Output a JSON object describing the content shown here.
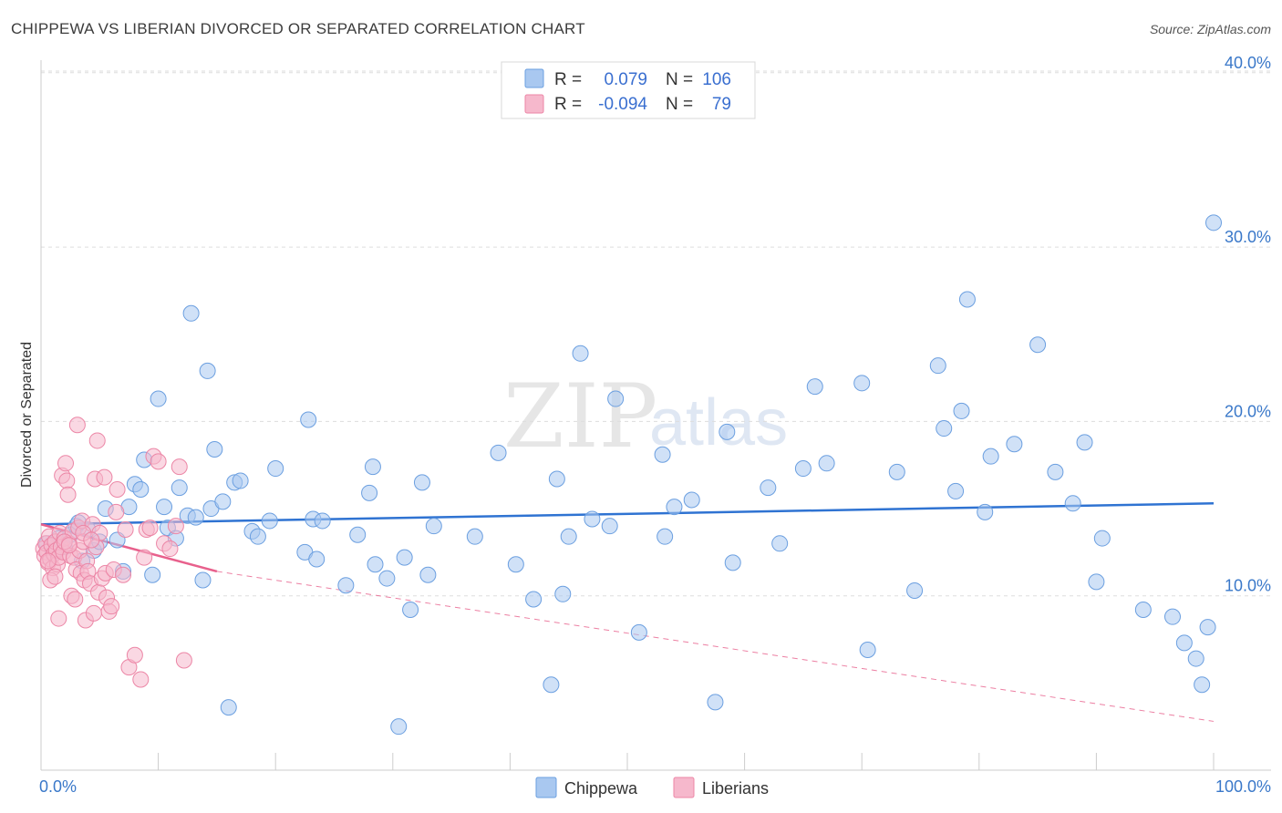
{
  "title": "CHIPPEWA VS LIBERIAN DIVORCED OR SEPARATED CORRELATION CHART",
  "source": "Source: ZipAtlas.com",
  "watermark": {
    "zip": "ZIP",
    "atlas": "atlas"
  },
  "colors": {
    "chippewa_fill": "#a9c8f0",
    "chippewa_stroke": "#6b9fe0",
    "chippewa_line": "#2f73d2",
    "liberian_fill": "#f6b8cc",
    "liberian_stroke": "#ec86a6",
    "liberian_line": "#e8608c",
    "grid": "#dddddd",
    "tick_text": "#3a78c9"
  },
  "legend": {
    "rows": [
      {
        "r_label": "R =",
        "r_value": "0.079",
        "n_label": "N =",
        "n_value": "106"
      },
      {
        "r_label": "R =",
        "r_value": "-0.094",
        "n_label": "N =",
        "n_value": "79"
      }
    ]
  },
  "chart_data": {
    "type": "scatter",
    "title": "CHIPPEWA VS LIBERIAN DIVORCED OR SEPARATED CORRELATION CHART",
    "xlabel": "",
    "ylabel": "Divorced or Separated",
    "xlim": [
      0,
      100
    ],
    "ylim": [
      0,
      42
    ],
    "x_tick_labels": [
      "0.0%",
      "100.0%"
    ],
    "y_ticks": [
      10,
      20,
      30,
      40
    ],
    "y_tick_labels": [
      "10.0%",
      "20.0%",
      "30.0%",
      "40.0%"
    ],
    "legend_position": "top-center",
    "series": [
      {
        "name": "Chippewa",
        "r": 0.079,
        "n": 106,
        "trend": {
          "x": [
            0,
            100
          ],
          "y": [
            14.1,
            15.3
          ]
        },
        "points": [
          [
            0.5,
            13.0
          ],
          [
            1.0,
            12.4
          ],
          [
            1.5,
            13.3
          ],
          [
            2.0,
            12.8
          ],
          [
            2.5,
            13.5
          ],
          [
            3.0,
            14.0
          ],
          [
            3.5,
            12.0
          ],
          [
            4.0,
            13.8
          ],
          [
            4.5,
            12.6
          ],
          [
            5.0,
            13.1
          ],
          [
            5.5,
            15.0
          ],
          [
            6.5,
            13.2
          ],
          [
            7.0,
            11.4
          ],
          [
            7.5,
            15.1
          ],
          [
            8.0,
            16.4
          ],
          [
            8.5,
            16.1
          ],
          [
            8.8,
            17.8
          ],
          [
            9.5,
            11.2
          ],
          [
            10.0,
            21.3
          ],
          [
            10.5,
            15.1
          ],
          [
            10.8,
            13.9
          ],
          [
            11.5,
            13.3
          ],
          [
            11.8,
            16.2
          ],
          [
            12.5,
            14.6
          ],
          [
            12.8,
            26.2
          ],
          [
            13.2,
            14.5
          ],
          [
            13.8,
            10.9
          ],
          [
            14.2,
            22.9
          ],
          [
            14.5,
            15.0
          ],
          [
            14.8,
            18.4
          ],
          [
            15.5,
            15.4
          ],
          [
            16.0,
            3.6
          ],
          [
            16.5,
            16.5
          ],
          [
            17.0,
            16.6
          ],
          [
            18.0,
            13.7
          ],
          [
            18.5,
            13.4
          ],
          [
            19.5,
            14.3
          ],
          [
            20.0,
            17.3
          ],
          [
            22.5,
            12.5
          ],
          [
            22.8,
            20.1
          ],
          [
            23.2,
            14.4
          ],
          [
            23.5,
            12.1
          ],
          [
            24.0,
            14.3
          ],
          [
            26.0,
            10.6
          ],
          [
            27.0,
            13.5
          ],
          [
            28.0,
            15.9
          ],
          [
            28.3,
            17.4
          ],
          [
            28.5,
            11.8
          ],
          [
            29.5,
            11.0
          ],
          [
            30.5,
            2.5
          ],
          [
            31.0,
            12.2
          ],
          [
            31.5,
            9.2
          ],
          [
            32.5,
            16.5
          ],
          [
            33.0,
            11.2
          ],
          [
            33.5,
            14.0
          ],
          [
            37.0,
            13.4
          ],
          [
            39.0,
            18.2
          ],
          [
            40.5,
            11.8
          ],
          [
            42.0,
            9.8
          ],
          [
            43.5,
            4.9
          ],
          [
            44.0,
            16.7
          ],
          [
            44.5,
            10.1
          ],
          [
            45.0,
            13.4
          ],
          [
            46.0,
            23.9
          ],
          [
            47.0,
            14.4
          ],
          [
            48.5,
            14.0
          ],
          [
            49.0,
            21.3
          ],
          [
            51.0,
            7.9
          ],
          [
            53.0,
            18.1
          ],
          [
            53.2,
            13.4
          ],
          [
            54.0,
            15.1
          ],
          [
            55.5,
            15.5
          ],
          [
            57.5,
            3.9
          ],
          [
            58.5,
            19.4
          ],
          [
            59.0,
            11.9
          ],
          [
            62.0,
            16.2
          ],
          [
            63.0,
            13.0
          ],
          [
            65.0,
            17.3
          ],
          [
            66.0,
            22.0
          ],
          [
            67.0,
            17.6
          ],
          [
            70.0,
            22.2
          ],
          [
            70.5,
            6.9
          ],
          [
            73.0,
            17.1
          ],
          [
            74.5,
            10.3
          ],
          [
            76.5,
            23.2
          ],
          [
            77.0,
            19.6
          ],
          [
            78.0,
            16.0
          ],
          [
            78.5,
            20.6
          ],
          [
            79.0,
            27.0
          ],
          [
            80.5,
            14.8
          ],
          [
            81.0,
            18.0
          ],
          [
            83.0,
            18.7
          ],
          [
            85.0,
            24.4
          ],
          [
            86.5,
            17.1
          ],
          [
            88.0,
            15.3
          ],
          [
            89.0,
            18.8
          ],
          [
            90.0,
            10.8
          ],
          [
            90.5,
            13.3
          ],
          [
            94.0,
            9.2
          ],
          [
            96.5,
            8.8
          ],
          [
            97.5,
            7.3
          ],
          [
            98.5,
            6.4
          ],
          [
            99.0,
            4.9
          ],
          [
            100.0,
            31.4
          ],
          [
            99.5,
            8.2
          ],
          [
            3.2,
            14.2
          ]
        ]
      },
      {
        "name": "Liberians",
        "r": -0.094,
        "n": 79,
        "trend": {
          "x": [
            0,
            15
          ],
          "y": [
            14.1,
            11.4
          ]
        },
        "trend_extended": {
          "x": [
            15,
            100
          ],
          "y": [
            11.4,
            2.8
          ]
        },
        "points": [
          [
            0.2,
            12.7
          ],
          [
            0.3,
            12.3
          ],
          [
            0.4,
            13.0
          ],
          [
            0.5,
            12.5
          ],
          [
            0.6,
            11.9
          ],
          [
            0.7,
            13.4
          ],
          [
            0.8,
            12.1
          ],
          [
            0.9,
            12.9
          ],
          [
            1.0,
            11.6
          ],
          [
            1.1,
            12.4
          ],
          [
            1.2,
            13.1
          ],
          [
            1.3,
            12.6
          ],
          [
            1.4,
            11.8
          ],
          [
            1.5,
            12.2
          ],
          [
            1.6,
            13.6
          ],
          [
            1.7,
            12.8
          ],
          [
            1.8,
            16.9
          ],
          [
            1.9,
            12.5
          ],
          [
            2.0,
            13.3
          ],
          [
            2.1,
            17.6
          ],
          [
            2.2,
            16.6
          ],
          [
            2.3,
            15.8
          ],
          [
            2.4,
            13.0
          ],
          [
            2.5,
            12.3
          ],
          [
            2.6,
            10.0
          ],
          [
            2.7,
            13.7
          ],
          [
            2.8,
            12.2
          ],
          [
            2.9,
            9.8
          ],
          [
            3.0,
            11.5
          ],
          [
            3.1,
            19.8
          ],
          [
            3.2,
            13.9
          ],
          [
            3.3,
            12.6
          ],
          [
            3.4,
            11.3
          ],
          [
            3.5,
            14.3
          ],
          [
            3.6,
            13.1
          ],
          [
            3.7,
            10.9
          ],
          [
            3.8,
            8.6
          ],
          [
            3.9,
            12.0
          ],
          [
            4.0,
            11.4
          ],
          [
            4.2,
            10.7
          ],
          [
            4.4,
            14.1
          ],
          [
            4.5,
            9.0
          ],
          [
            4.6,
            16.7
          ],
          [
            4.7,
            12.8
          ],
          [
            4.8,
            18.9
          ],
          [
            4.9,
            10.2
          ],
          [
            5.0,
            13.6
          ],
          [
            5.2,
            11.0
          ],
          [
            5.4,
            16.8
          ],
          [
            5.5,
            11.3
          ],
          [
            5.6,
            9.9
          ],
          [
            5.8,
            9.1
          ],
          [
            6.0,
            9.4
          ],
          [
            6.2,
            11.5
          ],
          [
            6.4,
            14.8
          ],
          [
            6.5,
            16.1
          ],
          [
            7.0,
            11.2
          ],
          [
            7.2,
            13.8
          ],
          [
            7.5,
            5.9
          ],
          [
            8.0,
            6.6
          ],
          [
            8.5,
            5.2
          ],
          [
            8.8,
            12.2
          ],
          [
            9.0,
            13.8
          ],
          [
            9.3,
            13.9
          ],
          [
            9.6,
            18.0
          ],
          [
            10.0,
            17.7
          ],
          [
            10.5,
            13.0
          ],
          [
            11.0,
            12.7
          ],
          [
            11.5,
            14.0
          ],
          [
            11.8,
            17.4
          ],
          [
            12.2,
            6.3
          ],
          [
            1.5,
            8.7
          ],
          [
            0.8,
            10.9
          ],
          [
            1.2,
            11.1
          ],
          [
            2.0,
            13.1
          ],
          [
            0.6,
            12.0
          ],
          [
            3.6,
            13.6
          ],
          [
            2.4,
            12.9
          ],
          [
            4.3,
            13.2
          ]
        ]
      }
    ]
  },
  "bottom_legend": [
    {
      "label": "Chippewa"
    },
    {
      "label": "Liberians"
    }
  ]
}
